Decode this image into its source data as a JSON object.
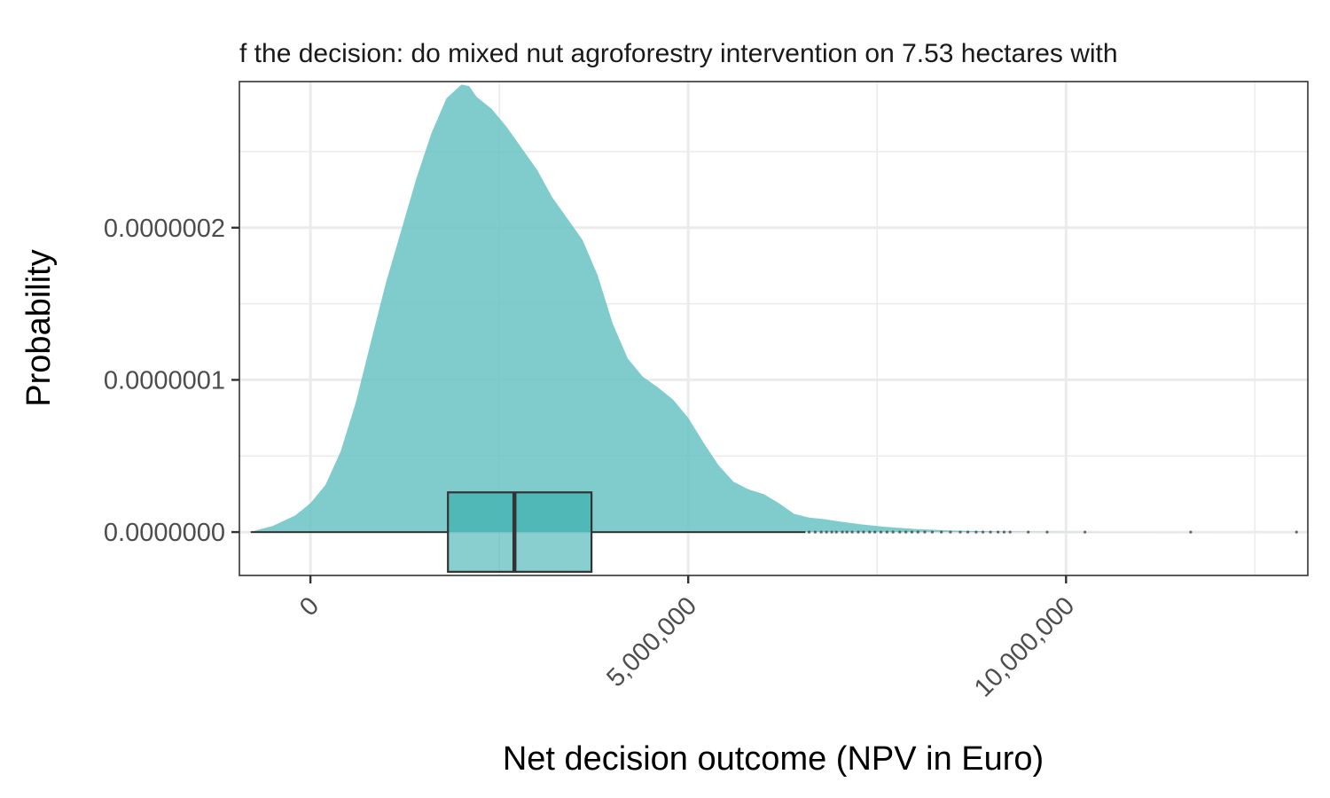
{
  "chart_data": {
    "type": "area",
    "title": "f the decision: do mixed nut agroforestry intervention on 7.53 hectares with",
    "xlabel": "Net decision outcome (NPV in Euro)",
    "ylabel": "Probability",
    "xlim": [
      -940000,
      13200000
    ],
    "ylim": [
      -2.85e-08,
      2.96e-07
    ],
    "x_ticks": [
      0,
      5000000,
      10000000
    ],
    "x_tick_labels": [
      "0",
      "5,000,000",
      "10,000,000"
    ],
    "y_ticks": [
      0,
      1e-07,
      2e-07
    ],
    "y_tick_labels": [
      "0.0000000",
      "0.0000001",
      "0.0000002"
    ],
    "grid": true,
    "legend": "none",
    "fill_color": "#66c2c2",
    "box_color": "#2aa8a8",
    "series": [
      {
        "type": "density",
        "x": [
          -800000,
          -500000,
          -200000,
          0,
          200000,
          400000,
          600000,
          800000,
          1000000,
          1200000,
          1400000,
          1600000,
          1800000,
          2000000,
          2100000,
          2200000,
          2400000,
          2600000,
          2800000,
          3000000,
          3200000,
          3400000,
          3600000,
          3800000,
          4000000,
          4200000,
          4400000,
          4600000,
          4800000,
          5000000,
          5200000,
          5400000,
          5600000,
          5800000,
          6000000,
          6200000,
          6400000,
          6600000,
          6800000,
          7000000,
          7300000,
          7600000,
          8000000,
          8500000,
          9000000,
          9500000,
          10000000,
          10500000,
          11000000,
          12000000,
          13000000
        ],
        "y": [
          1e-10,
          4e-09,
          1.1e-08,
          1.9e-08,
          3.1e-08,
          5.3e-08,
          8.5e-08,
          1.25e-07,
          1.64e-07,
          1.98e-07,
          2.32e-07,
          2.62e-07,
          2.85e-07,
          2.94e-07,
          2.93e-07,
          2.86e-07,
          2.78e-07,
          2.66e-07,
          2.52e-07,
          2.38e-07,
          2.2e-07,
          2.06e-07,
          1.92e-07,
          1.69e-07,
          1.37e-07,
          1.14e-07,
          1.02e-07,
          9.5e-08,
          8.7e-08,
          7.5e-08,
          5.9e-08,
          4.4e-08,
          3.3e-08,
          2.8e-08,
          2.5e-08,
          1.9e-08,
          1.2e-08,
          9.5e-09,
          8.5e-09,
          7e-09,
          5e-09,
          3.5e-09,
          2e-09,
          1e-09,
          5e-10,
          3e-10,
          1e-10,
          5e-11,
          3e-11,
          1e-11,
          0.0
        ]
      },
      {
        "type": "boxplot",
        "q1": 1820000,
        "median": 2700000,
        "q3": 3720000,
        "whisker_low": -790000,
        "whisker_high": 6550000,
        "y_center": 0,
        "half_height": 2.61e-08,
        "outliers": [
          6600000,
          6680000,
          6760000,
          6830000,
          6900000,
          6960000,
          7040000,
          7100000,
          7170000,
          7250000,
          7320000,
          7400000,
          7470000,
          7550000,
          7630000,
          7710000,
          7800000,
          7880000,
          7960000,
          8040000,
          8130000,
          8230000,
          8350000,
          8470000,
          8600000,
          8700000,
          8810000,
          8900000,
          9000000,
          9100000,
          9180000,
          9260000,
          9500000,
          9750000,
          10250000,
          11650000,
          13050000
        ]
      }
    ]
  }
}
